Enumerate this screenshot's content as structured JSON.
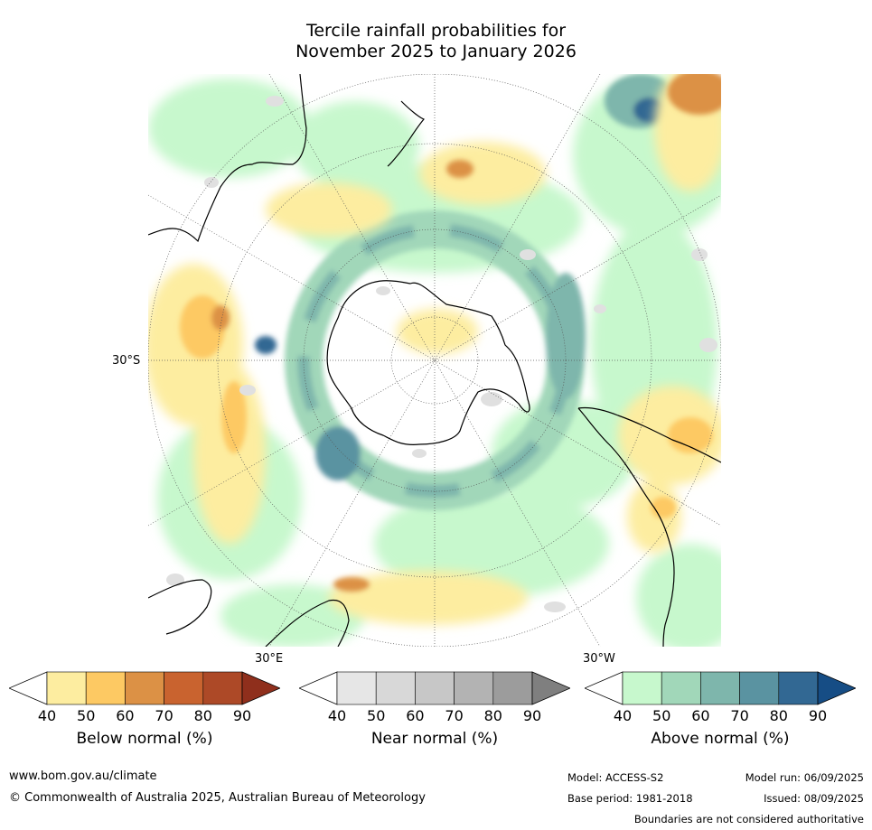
{
  "title": {
    "line1": "Tercile rainfall probabilities for",
    "line2": "November 2025 to January 2026"
  },
  "map": {
    "projection": "south-polar",
    "lat_label": "30°S",
    "lon_labels": {
      "east": "30°E",
      "west": "30°W"
    }
  },
  "legend": {
    "below": {
      "label": "Below normal (%)",
      "ticks": [
        "40",
        "50",
        "60",
        "70",
        "80",
        "90"
      ],
      "colors": [
        "#fdeda0",
        "#fdc963",
        "#dc9145",
        "#c9632f",
        "#ad4927",
        "#8f2f1c"
      ]
    },
    "near": {
      "label": "Near normal (%)",
      "ticks": [
        "40",
        "50",
        "60",
        "70",
        "80",
        "90"
      ],
      "colors": [
        "#e6e6e6",
        "#d8d8d8",
        "#c7c7c7",
        "#b3b3b3",
        "#9c9c9c",
        "#7f7f7f"
      ]
    },
    "above": {
      "label": "Above normal (%)",
      "ticks": [
        "40",
        "50",
        "60",
        "70",
        "80",
        "90"
      ],
      "colors": [
        "#c7f8cd",
        "#a1d7b9",
        "#7eb6ac",
        "#5a93a1",
        "#326893",
        "#164d85"
      ]
    }
  },
  "footer": {
    "website": "www.bom.gov.au/climate",
    "copyright": "© Commonwealth of Australia 2025, Australian Bureau of Meteorology",
    "model": "Model: ACCESS-S2",
    "model_run": "Model run: 06/09/2025",
    "base_period": "Base period: 1981-2018",
    "issued": "Issued: 08/09/2025",
    "disclaimer": "Boundaries are not considered authoritative"
  }
}
